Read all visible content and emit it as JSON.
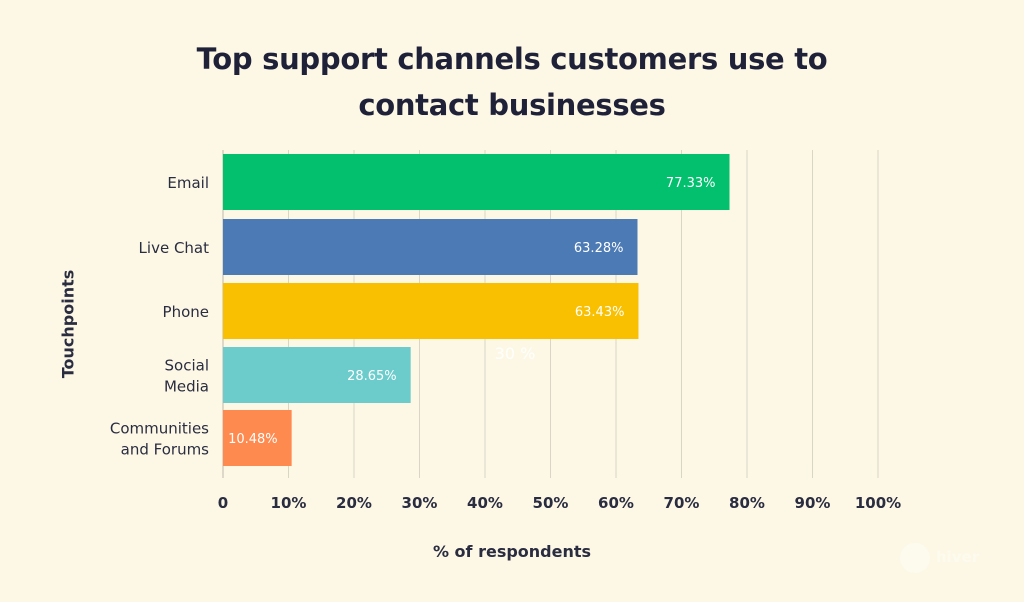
{
  "chart_data": {
    "type": "bar",
    "orientation": "horizontal",
    "title_lines": [
      "Top support channels customers use to",
      "contact businesses"
    ],
    "xlabel": "% of respondents",
    "ylabel": "Touchpoints",
    "categories": [
      [
        "Email"
      ],
      [
        "Live Chat"
      ],
      [
        "Phone"
      ],
      [
        "Social",
        "Media"
      ],
      [
        "Communities",
        "and Forums"
      ]
    ],
    "values": [
      77.33,
      63.28,
      63.43,
      28.65,
      10.48
    ],
    "value_labels": [
      "77.33%",
      "63.28%",
      "63.43%",
      "28.65%",
      "10.48%"
    ],
    "colors": [
      "#03c06e",
      "#4c7ab5",
      "#f8c001",
      "#6ccbcb",
      "#ff8a4f"
    ],
    "xlim": [
      0,
      100
    ],
    "x_ticks": [
      {
        "value": 0,
        "label": "0"
      },
      {
        "value": 10,
        "label": "10%"
      },
      {
        "value": 20,
        "label": "20%"
      },
      {
        "value": 30,
        "label": "30%"
      },
      {
        "value": 40,
        "label": "40%"
      },
      {
        "value": 50,
        "label": "50%"
      },
      {
        "value": 60,
        "label": "60%"
      },
      {
        "value": 70,
        "label": "70%"
      },
      {
        "value": 80,
        "label": "80%"
      },
      {
        "value": 90,
        "label": "90%"
      },
      {
        "value": 100,
        "label": "100%"
      }
    ],
    "grid": "vertical",
    "annotation": "30 %"
  },
  "watermark": "hiver"
}
